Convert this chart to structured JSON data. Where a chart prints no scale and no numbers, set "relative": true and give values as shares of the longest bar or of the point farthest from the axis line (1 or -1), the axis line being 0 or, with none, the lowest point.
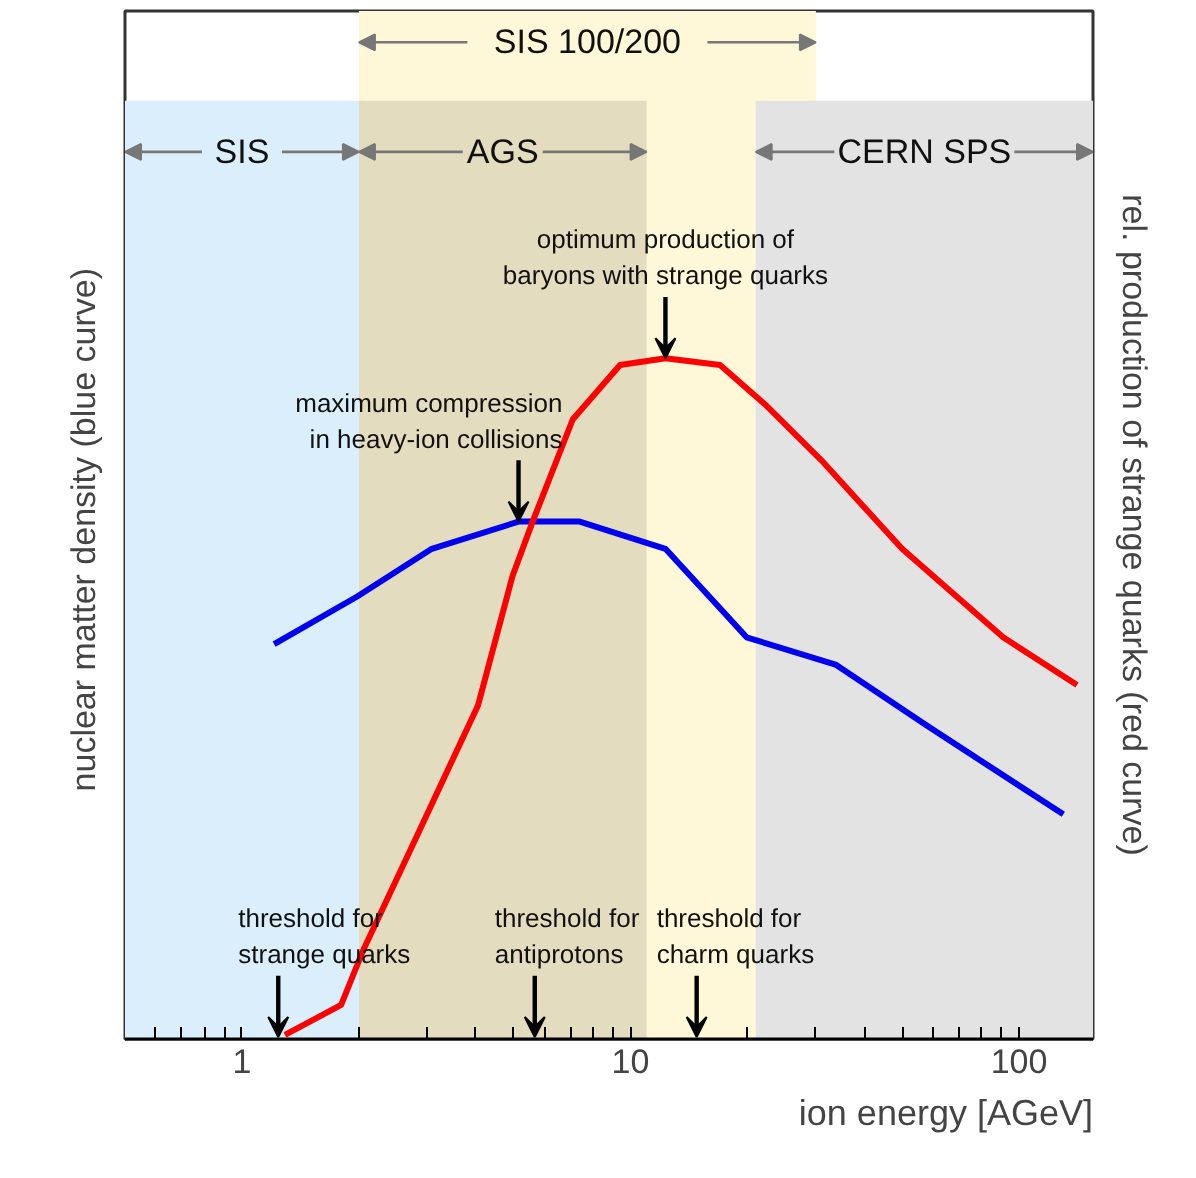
{
  "chart_data": {
    "type": "line",
    "relative": true,
    "xlabel": "ion energy [AGeV]",
    "ylabel": "nuclear matter density  (blue curve)",
    "y2label": "rel. production of strange quarks (red curve)",
    "log": "x",
    "grid": false,
    "tick_labels": "x",
    "line_style": "solid",
    "marker": "none",
    "xlim": [
      0.5,
      155
    ],
    "xticks": [
      {
        "value": 0.6,
        "label": null
      },
      {
        "value": 0.7,
        "label": null
      },
      {
        "value": 0.8,
        "label": null
      },
      {
        "value": 0.9,
        "label": null
      },
      1,
      {
        "value": 2,
        "label": null
      },
      {
        "value": 3,
        "label": null
      },
      {
        "value": 4,
        "label": null
      },
      {
        "value": 5,
        "label": null
      },
      {
        "value": 6,
        "label": null
      },
      {
        "value": 7,
        "label": null
      },
      {
        "value": 8,
        "label": null
      },
      {
        "value": 9,
        "label": null
      },
      10,
      {
        "value": 20,
        "label": null
      },
      {
        "value": 30,
        "label": null
      },
      {
        "value": 40,
        "label": null
      },
      {
        "value": 50,
        "label": null
      },
      {
        "value": 60,
        "label": null
      },
      {
        "value": 70,
        "label": null
      },
      {
        "value": 80,
        "label": null
      },
      {
        "value": 90,
        "label": null
      },
      100
    ],
    "series": [
      {
        "color": "#0000ee",
        "x": [
          1.21,
          1.98,
          3.08,
          5.15,
          7.4,
          12.3,
          19.9,
          33.7,
          58,
          130
        ],
        "values": [
          0.58,
          0.65,
          0.72,
          0.76,
          0.76,
          0.72,
          0.59,
          0.55,
          0.46,
          0.33
        ]
      },
      {
        "color": "#ff0000",
        "x": [
          1.29,
          1.8,
          2.05,
          2.83,
          4.05,
          4.97,
          5.6,
          7.1,
          9.4,
          12.3,
          17,
          22.4,
          31,
          50,
          91,
          141
        ],
        "values": [
          0.006,
          0.05,
          0.13,
          0.3,
          0.49,
          0.68,
          0.76,
          0.91,
          0.99,
          1,
          0.99,
          0.93,
          0.85,
          0.72,
          0.59,
          0.52
        ]
      }
    ],
    "bands": [
      {
        "axis": "x",
        "from": 2,
        "to": 30,
        "label": "SIS 100/200",
        "color": "#fff8d8"
      },
      {
        "axis": "x",
        "from": 0.5,
        "to": 2,
        "label": "SIS",
        "color": "#dbeefc"
      },
      {
        "axis": "x",
        "from": 2,
        "to": 11,
        "label": "AGS",
        "color": "#e3dcbf"
      },
      {
        "axis": "x",
        "from": 21,
        "to": 155,
        "label": "CERN SPS",
        "color": "#e3e3e3"
      }
    ],
    "annotations": [
      {
        "text": "threshold for\nstrange quarks",
        "x": 1.24,
        "y": 0
      },
      {
        "text": "threshold for\nantiprotons",
        "x": 5.67,
        "y": 0
      },
      {
        "text": "threshold for\ncharm quarks",
        "x": 14.8,
        "y": 0
      },
      {
        "text": "maximum compression\nin heavy-ion collisions",
        "x": 5.15,
        "y": 0.76
      },
      {
        "text": "optimum production of\nbaryons with strange quarks",
        "x": 12.3,
        "y": 1
      }
    ]
  }
}
